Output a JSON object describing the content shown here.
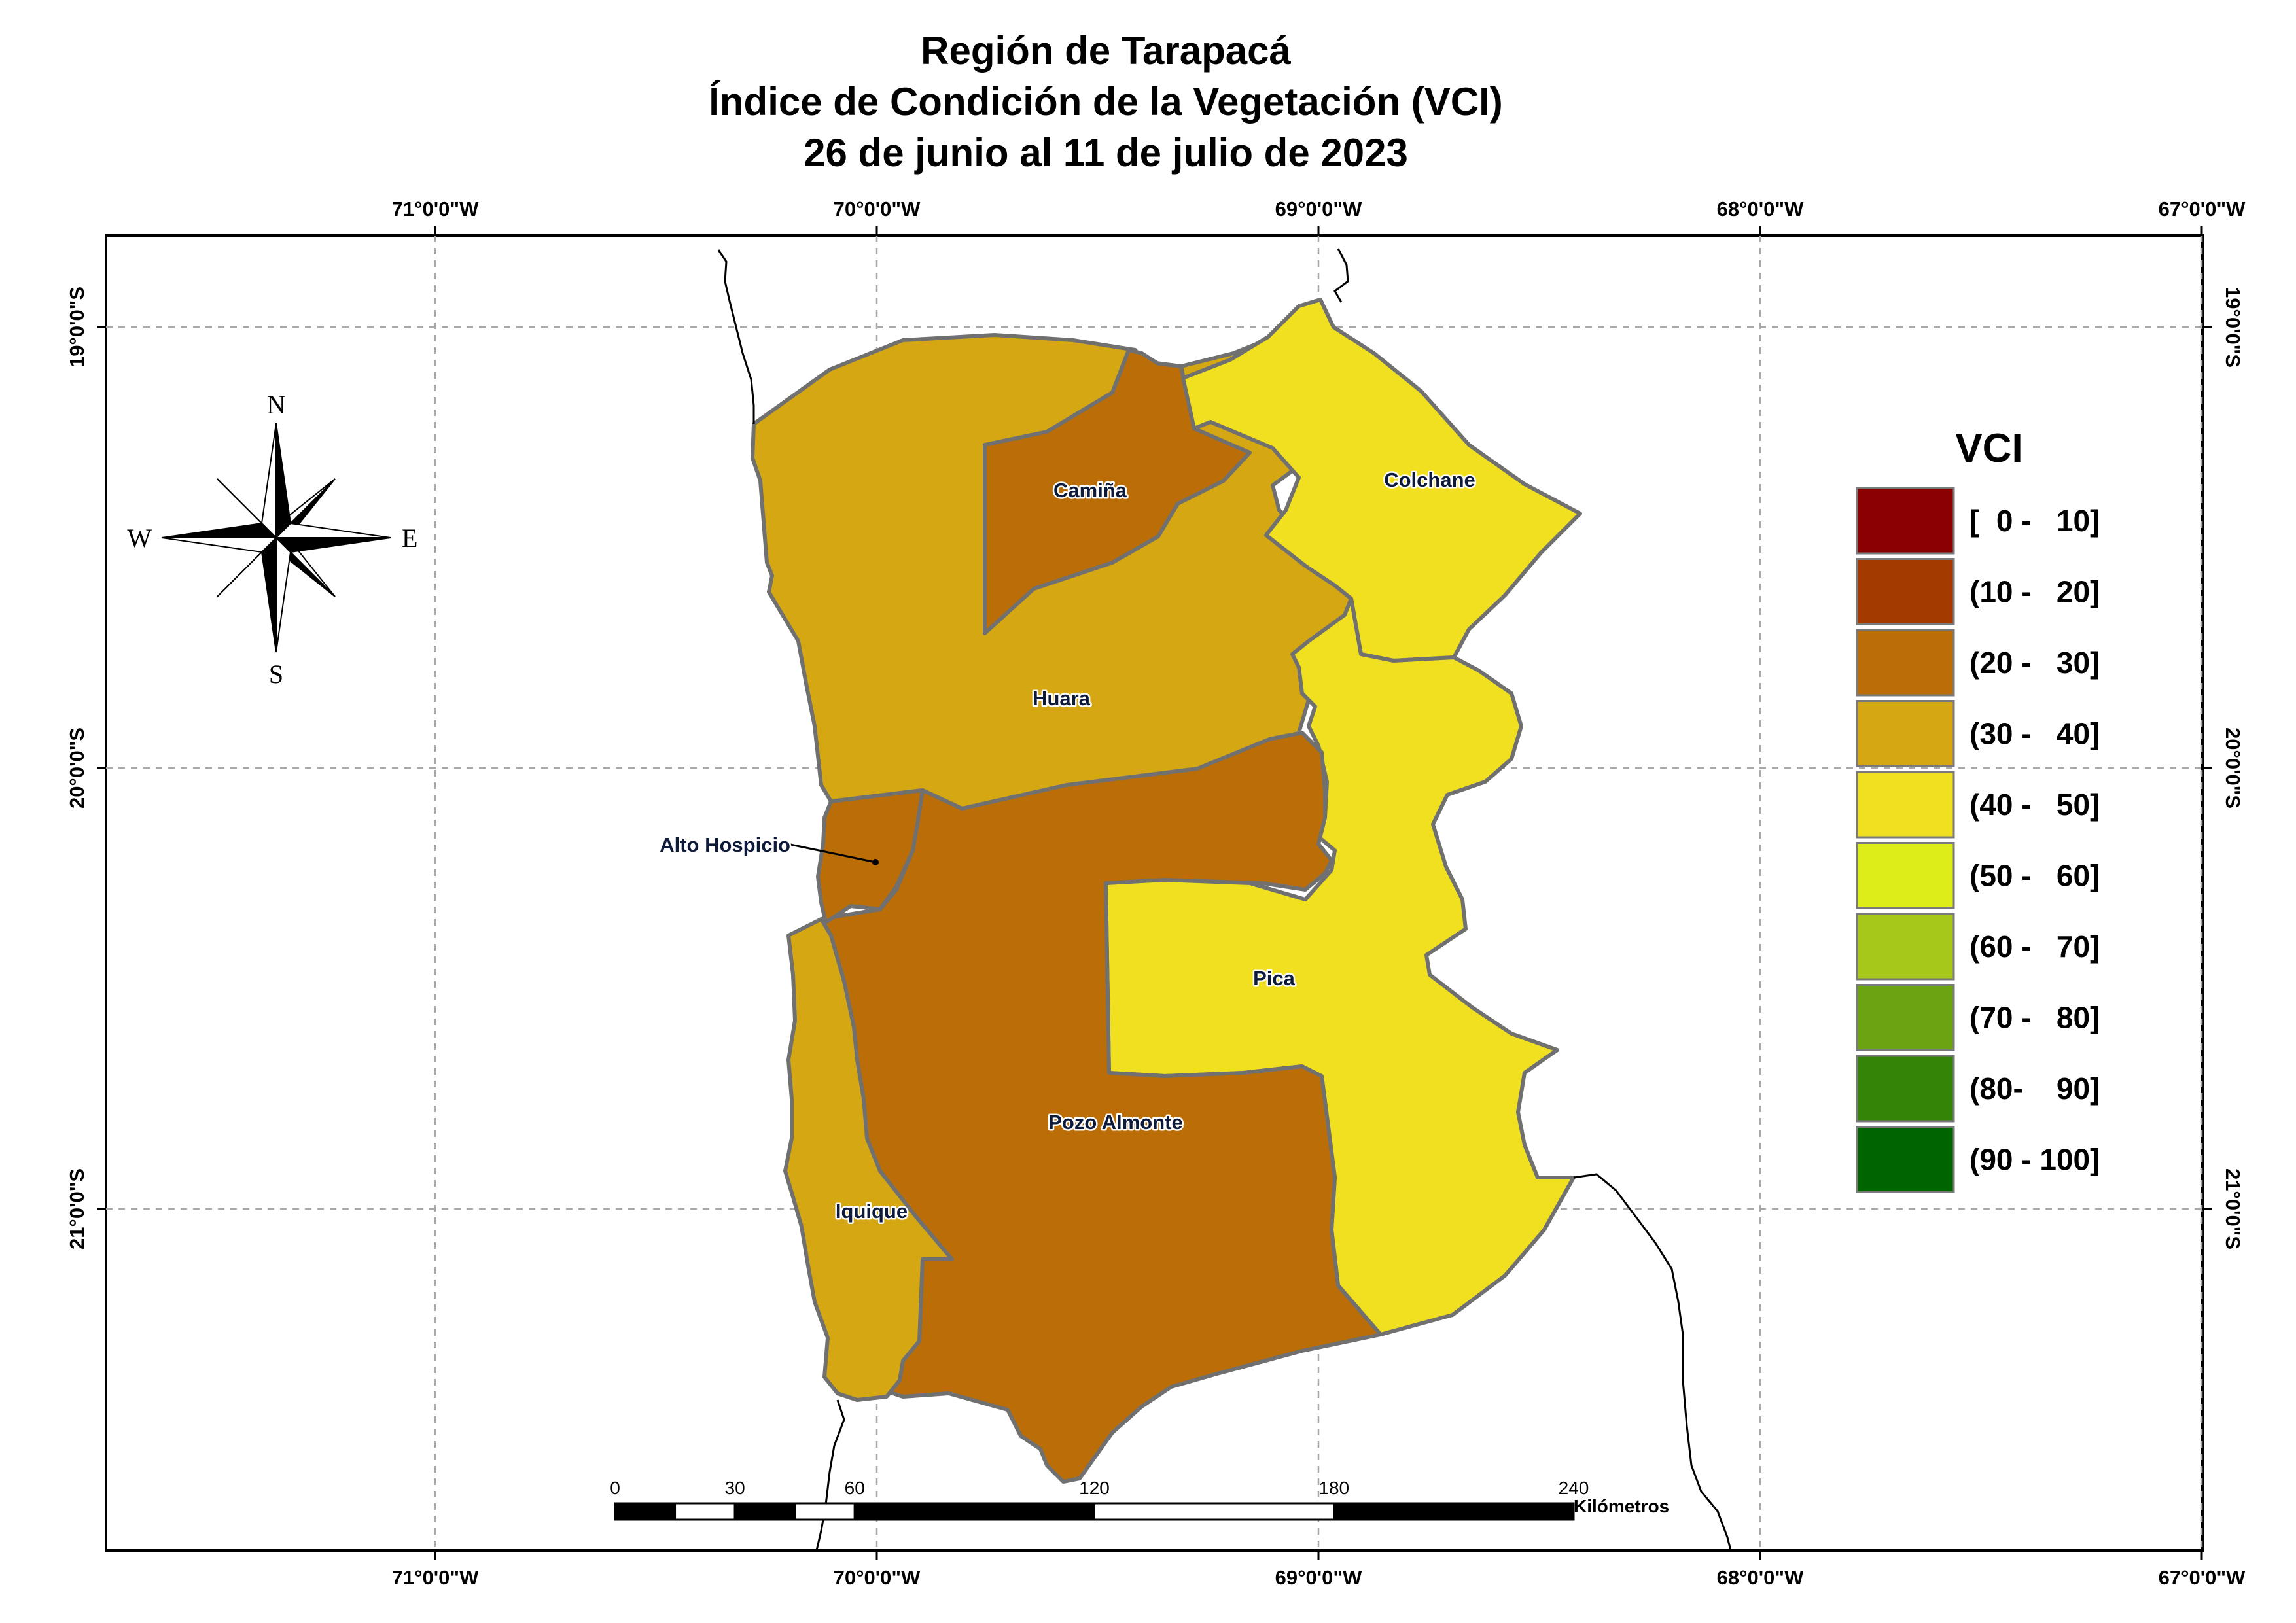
{
  "title": {
    "line1": "Región de Tarapacá",
    "line2": "Índice de Condición de la Vegetación (VCI)",
    "line3": "26 de junio al 11 de julio de 2023"
  },
  "longitudes": [
    "71°0'0\"W",
    "70°0'0\"W",
    "69°0'0\"W",
    "68°0'0\"W",
    "67°0'0\"W"
  ],
  "latitudes": [
    "19°0'0\"S",
    "20°0'0\"S",
    "21°0'0\"S"
  ],
  "compass": {
    "north": "N",
    "south": "S",
    "east": "E",
    "west": "W"
  },
  "municipalities": [
    {
      "id": "camina",
      "name": "Camiña",
      "vci_class": "(20 - 30]",
      "color": "#BB6E07"
    },
    {
      "id": "colchane",
      "name": "Colchane",
      "vci_class": "(40 - 50]",
      "color": "#F0E020"
    },
    {
      "id": "huara",
      "name": "Huara",
      "vci_class": "(30 - 40]",
      "color": "#D4A713"
    },
    {
      "id": "alto-hospicio",
      "name": "Alto Hospicio",
      "vci_class": "(20 - 30]",
      "color": "#BB6E07"
    },
    {
      "id": "pica",
      "name": "Pica",
      "vci_class": "(40 - 50]",
      "color": "#F0E020"
    },
    {
      "id": "pozo-almonte",
      "name": "Pozo Almonte",
      "vci_class": "(20 - 30]",
      "color": "#BB6E07"
    },
    {
      "id": "iquique",
      "name": "Iquique",
      "vci_class": "(30 - 40]",
      "color": "#D4A713"
    }
  ],
  "legend": {
    "title": "VCI",
    "items": [
      {
        "label": "[  0 -   10]",
        "color": "#8B0000"
      },
      {
        "label": "(10 -   20]",
        "color": "#A33B00"
      },
      {
        "label": "(20 -   30]",
        "color": "#BB6E07"
      },
      {
        "label": "(30 -   40]",
        "color": "#D4A713"
      },
      {
        "label": "(40 -   50]",
        "color": "#F0E020"
      },
      {
        "label": "(50 -   60]",
        "color": "#DDED18"
      },
      {
        "label": "(60 -   70]",
        "color": "#A6C81A"
      },
      {
        "label": "(70 -   80]",
        "color": "#6CA313"
      },
      {
        "label": "(80-    90]",
        "color": "#348407"
      },
      {
        "label": "(90 - 100]",
        "color": "#006400"
      }
    ]
  },
  "scale_bar": {
    "labels": [
      "0",
      "30",
      "60",
      "120",
      "180",
      "240"
    ],
    "values_km": [
      0,
      30,
      60,
      120,
      180,
      240
    ],
    "unit": "Kilómetros"
  }
}
